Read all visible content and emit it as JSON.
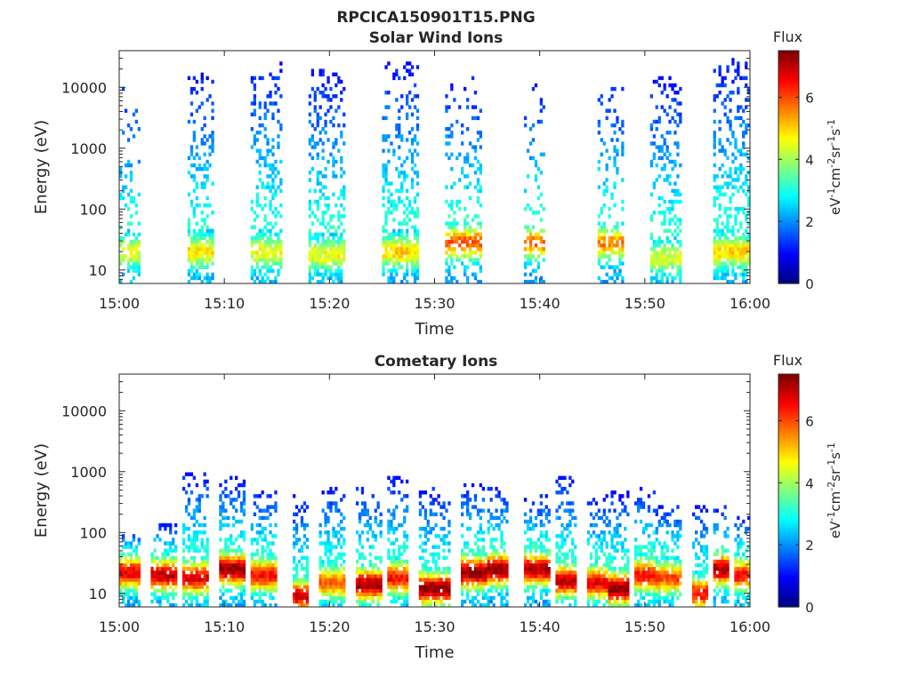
{
  "figure_title": "RPCICA150901T15.PNG",
  "chart_data": [
    {
      "type": "heatmap",
      "title": "Solar Wind Ions",
      "xlabel": "Time",
      "ylabel": "Energy (eV)",
      "x_range": [
        "15:00",
        "16:00"
      ],
      "x_ticks": [
        "15:00",
        "15:10",
        "15:20",
        "15:30",
        "15:40",
        "15:50",
        "16:00"
      ],
      "ylim": [
        6,
        40000
      ],
      "yscale": "log",
      "y_ticks": [
        "10",
        "100",
        "1000",
        "10000"
      ],
      "colorbar": {
        "title": "Flux",
        "unit": "eV-1cm-2sr-1s-1",
        "min": 0,
        "max": 7.5,
        "ticks": [
          "0",
          "2",
          "4",
          "6"
        ],
        "colormap": "jet"
      },
      "bursts": [
        {
          "start": "15:00:00",
          "end": "15:02:00",
          "peak_energy_eV": 20,
          "peak_flux": 4.5,
          "max_energy_eV": 12000,
          "density": 0.32
        },
        {
          "start": "15:06:30",
          "end": "15:09:00",
          "peak_energy_eV": 20,
          "peak_flux": 4.8,
          "max_energy_eV": 18000,
          "density": 0.62
        },
        {
          "start": "15:12:30",
          "end": "15:15:30",
          "peak_energy_eV": 20,
          "peak_flux": 4.6,
          "max_energy_eV": 25000,
          "density": 0.62
        },
        {
          "start": "15:18:00",
          "end": "15:21:30",
          "peak_energy_eV": 18,
          "peak_flux": 4.6,
          "max_energy_eV": 20000,
          "density": 0.64
        },
        {
          "start": "15:25:00",
          "end": "15:28:30",
          "peak_energy_eV": 20,
          "peak_flux": 5.0,
          "max_energy_eV": 28000,
          "density": 0.58
        },
        {
          "start": "15:31:00",
          "end": "15:34:30",
          "peak_energy_eV": 28,
          "peak_flux": 6.0,
          "max_energy_eV": 15000,
          "density": 0.45
        },
        {
          "start": "15:38:30",
          "end": "15:40:30",
          "peak_energy_eV": 28,
          "peak_flux": 5.8,
          "max_energy_eV": 12000,
          "density": 0.3
        },
        {
          "start": "15:45:30",
          "end": "15:48:00",
          "peak_energy_eV": 28,
          "peak_flux": 5.6,
          "max_energy_eV": 12000,
          "density": 0.44
        },
        {
          "start": "15:50:30",
          "end": "15:53:30",
          "peak_energy_eV": 16,
          "peak_flux": 4.4,
          "max_energy_eV": 15000,
          "density": 0.6
        },
        {
          "start": "15:56:30",
          "end": "16:00:00",
          "peak_energy_eV": 20,
          "peak_flux": 5.0,
          "max_energy_eV": 30000,
          "density": 0.7
        }
      ]
    },
    {
      "type": "heatmap",
      "title": "Cometary Ions",
      "xlabel": "Time",
      "ylabel": "Energy (eV)",
      "x_range": [
        "15:00",
        "16:00"
      ],
      "x_ticks": [
        "15:00",
        "15:10",
        "15:20",
        "15:30",
        "15:40",
        "15:50",
        "16:00"
      ],
      "ylim": [
        6,
        40000
      ],
      "yscale": "log",
      "y_ticks": [
        "10",
        "100",
        "1000",
        "10000"
      ],
      "colorbar": {
        "title": "Flux",
        "unit": "eV-1cm-2sr-1s-1",
        "min": 0,
        "max": 7.5,
        "ticks": [
          "0",
          "2",
          "4",
          "6"
        ],
        "colormap": "jet"
      },
      "bursts": [
        {
          "start": "15:00:00",
          "end": "15:02:00",
          "peak_energy_eV": 22,
          "peak_flux": 6.8,
          "max_energy_eV": 100,
          "density": 0.8
        },
        {
          "start": "15:03:00",
          "end": "15:05:30",
          "peak_energy_eV": 20,
          "peak_flux": 7.0,
          "max_energy_eV": 150,
          "density": 0.8
        },
        {
          "start": "15:06:00",
          "end": "15:08:30",
          "peak_energy_eV": 18,
          "peak_flux": 6.8,
          "max_energy_eV": 1000,
          "density": 0.8
        },
        {
          "start": "15:09:30",
          "end": "15:12:00",
          "peak_energy_eV": 25,
          "peak_flux": 7.4,
          "max_energy_eV": 800,
          "density": 0.8
        },
        {
          "start": "15:12:30",
          "end": "15:15:00",
          "peak_energy_eV": 20,
          "peak_flux": 6.5,
          "max_energy_eV": 500,
          "density": 0.8
        },
        {
          "start": "15:16:30",
          "end": "15:18:00",
          "peak_energy_eV": 9,
          "peak_flux": 6.8,
          "max_energy_eV": 400,
          "density": 0.8
        },
        {
          "start": "15:19:00",
          "end": "15:21:30",
          "peak_energy_eV": 15,
          "peak_flux": 5.8,
          "max_energy_eV": 600,
          "density": 0.75
        },
        {
          "start": "15:22:30",
          "end": "15:25:00",
          "peak_energy_eV": 14,
          "peak_flux": 7.2,
          "max_energy_eV": 600,
          "density": 0.8
        },
        {
          "start": "15:25:30",
          "end": "15:27:30",
          "peak_energy_eV": 18,
          "peak_flux": 6.5,
          "max_energy_eV": 800,
          "density": 0.8
        },
        {
          "start": "15:28:30",
          "end": "15:31:30",
          "peak_energy_eV": 12,
          "peak_flux": 7.4,
          "max_energy_eV": 600,
          "density": 0.8
        },
        {
          "start": "15:32:30",
          "end": "15:35:00",
          "peak_energy_eV": 22,
          "peak_flux": 7.4,
          "max_energy_eV": 700,
          "density": 0.8
        },
        {
          "start": "15:35:00",
          "end": "15:37:00",
          "peak_energy_eV": 25,
          "peak_flux": 7.4,
          "max_energy_eV": 600,
          "density": 0.8
        },
        {
          "start": "15:38:30",
          "end": "15:41:00",
          "peak_energy_eV": 25,
          "peak_flux": 7.2,
          "max_energy_eV": 400,
          "density": 0.8
        },
        {
          "start": "15:41:30",
          "end": "15:43:30",
          "peak_energy_eV": 16,
          "peak_flux": 7.0,
          "max_energy_eV": 800,
          "density": 0.8
        },
        {
          "start": "15:44:30",
          "end": "15:46:30",
          "peak_energy_eV": 15,
          "peak_flux": 6.8,
          "max_energy_eV": 400,
          "density": 0.75
        },
        {
          "start": "15:46:30",
          "end": "15:48:30",
          "peak_energy_eV": 12,
          "peak_flux": 7.5,
          "max_energy_eV": 500,
          "density": 0.75
        },
        {
          "start": "15:49:00",
          "end": "15:51:00",
          "peak_energy_eV": 20,
          "peak_flux": 6.5,
          "max_energy_eV": 600,
          "density": 0.7
        },
        {
          "start": "15:51:00",
          "end": "15:53:30",
          "peak_energy_eV": 18,
          "peak_flux": 6.0,
          "max_energy_eV": 300,
          "density": 0.75
        },
        {
          "start": "15:54:30",
          "end": "15:56:00",
          "peak_energy_eV": 10,
          "peak_flux": 6.5,
          "max_energy_eV": 300,
          "density": 0.75
        },
        {
          "start": "15:56:30",
          "end": "15:58:00",
          "peak_energy_eV": 25,
          "peak_flux": 7.2,
          "max_energy_eV": 300,
          "density": 0.6
        },
        {
          "start": "15:58:30",
          "end": "16:00:00",
          "peak_energy_eV": 20,
          "peak_flux": 6.5,
          "max_energy_eV": 200,
          "density": 0.75
        }
      ]
    }
  ]
}
